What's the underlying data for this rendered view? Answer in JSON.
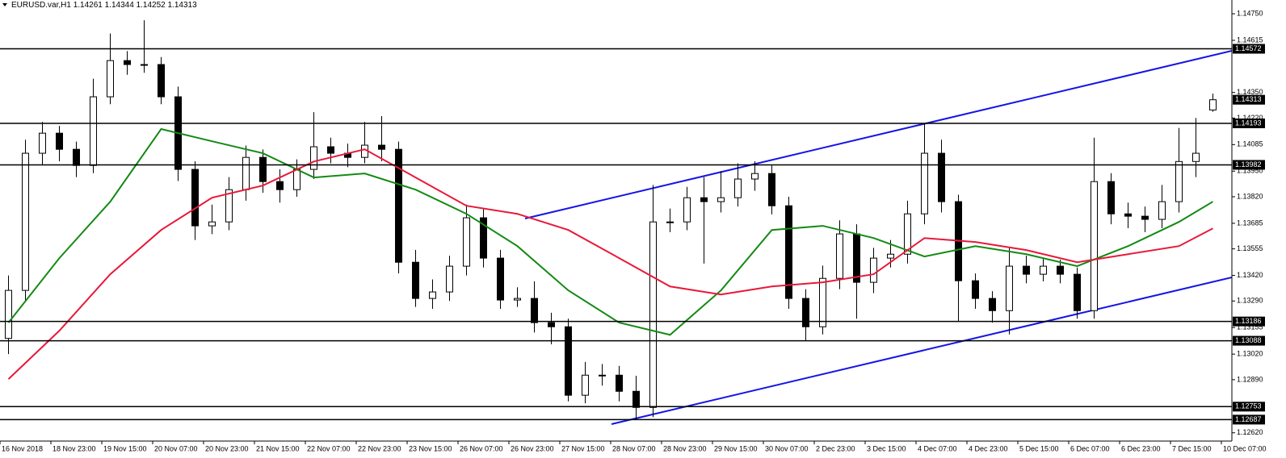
{
  "chart_data": {
    "type": "candlestick",
    "title": "EURUSD.var,H1",
    "ylim": [
      1.12578,
      1.1482
    ],
    "yticks": [
      {
        "value": 1.1475,
        "label": "1.14750"
      },
      1.14615,
      {
        "value": 1.1435,
        "label": "1.14350"
      },
      {
        "value": 1.1422,
        "label": "1.14220"
      },
      1.14085,
      {
        "value": 1.1395,
        "label": "1.13950"
      },
      {
        "value": 1.1382,
        "label": "1.13820"
      },
      1.13685,
      1.13555,
      {
        "value": 1.1342,
        "label": "1.13420"
      },
      {
        "value": 1.1329,
        "label": "1.13290"
      },
      1.13155,
      {
        "value": 1.1302,
        "label": "1.13020"
      },
      {
        "value": 1.1289,
        "label": "1.12890"
      },
      {
        "value": 1.1262,
        "label": "1.12620"
      }
    ],
    "x_labels": [
      "16 Nov 2018",
      "18 Nov 23:00",
      "19 Nov 15:00",
      "20 Nov 07:00",
      "20 Nov 23:00",
      "21 Nov 15:00",
      "22 Nov 07:00",
      "22 Nov 23:00",
      "23 Nov 15:00",
      "26 Nov 07:00",
      "26 Nov 23:00",
      "27 Nov 15:00",
      "28 Nov 07:00",
      "28 Nov 23:00",
      "29 Nov 15:00",
      "30 Nov 07:00",
      "2 Dec 23:00",
      "3 Dec 15:00",
      "4 Dec 07:00",
      "4 Dec 23:00",
      "5 Dec 15:00",
      "6 Dec 07:00",
      "6 Dec 23:00",
      "7 Dec 15:00",
      "10 Dec 07:00"
    ],
    "candles": {
      "open": [
        1.131,
        1.13344,
        1.14041,
        1.14143,
        1.14061,
        1.13979,
        1.14328,
        1.14512,
        1.14492,
        1.14492,
        1.14328,
        1.13959,
        1.13672,
        1.13692,
        1.13856,
        1.1402,
        1.13897,
        1.13856,
        1.13959,
        1.14074,
        1.14041,
        1.1402,
        1.14082,
        1.14061,
        1.13487,
        1.13303,
        1.13336,
        1.13467,
        1.13713,
        1.13508,
        1.13295,
        1.13303,
        1.1318,
        1.13159,
        1.12811,
        1.12913,
        1.12913,
        1.12831,
        1.12749,
        1.13692,
        1.13692,
        1.13815,
        1.13795,
        1.13815,
        1.1391,
        1.13938,
        1.13774,
        1.13303,
        1.13159,
        1.13405,
        1.13631,
        1.13385,
        1.13508,
        1.13528,
        1.13733,
        1.14041,
        1.13795,
        1.13393,
        1.13303,
        1.13241,
        1.13467,
        1.13426,
        1.13467,
        1.13426,
        1.13241,
        1.13897,
        1.13733,
        1.13721,
        1.13705,
        1.13795,
        1.13999,
        1.14261
      ],
      "high": [
        1.1342,
        1.1411,
        1.142,
        1.1418,
        1.141,
        1.1442,
        1.1465,
        1.1456,
        1.14717,
        1.1453,
        1.1438,
        1.14,
        1.1378,
        1.1392,
        1.1408,
        1.1406,
        1.1396,
        1.1401,
        1.1425,
        1.1412,
        1.1409,
        1.142,
        1.1423,
        1.141,
        1.1355,
        1.134,
        1.1352,
        1.1378,
        1.1376,
        1.1355,
        1.1336,
        1.1339,
        1.1323,
        1.132,
        1.1298,
        1.1297,
        1.1296,
        1.1291,
        1.1388,
        1.1376,
        1.1387,
        1.1392,
        1.1395,
        1.1399,
        1.14,
        1.1398,
        1.1382,
        1.1335,
        1.1347,
        1.137,
        1.1368,
        1.1356,
        1.136,
        1.138,
        1.14193,
        1.1411,
        1.1383,
        1.1343,
        1.1334,
        1.1356,
        1.1352,
        1.1351,
        1.135,
        1.1346,
        1.1412,
        1.1394,
        1.1379,
        1.1377,
        1.1388,
        1.1417,
        1.1422,
        1.14344
      ],
      "low": [
        1.1302,
        1.1329,
        1.1398,
        1.14,
        1.1392,
        1.1394,
        1.1429,
        1.1444,
        1.1445,
        1.1429,
        1.139,
        1.136,
        1.1363,
        1.1365,
        1.138,
        1.1384,
        1.1379,
        1.1382,
        1.1391,
        1.1399,
        1.1397,
        1.1399,
        1.14,
        1.1343,
        1.1326,
        1.1325,
        1.1329,
        1.1342,
        1.1346,
        1.1325,
        1.1326,
        1.1313,
        1.1307,
        1.1278,
        1.1277,
        1.1286,
        1.1278,
        1.12687,
        1.127,
        1.1364,
        1.1365,
        1.1348,
        1.1374,
        1.1377,
        1.1385,
        1.1373,
        1.1325,
        1.13088,
        1.1312,
        1.1335,
        1.132,
        1.1333,
        1.1346,
        1.1348,
        1.1368,
        1.1374,
        1.13186,
        1.1325,
        1.1318,
        1.1312,
        1.1338,
        1.1339,
        1.1338,
        1.132,
        1.132,
        1.1368,
        1.1366,
        1.1364,
        1.1366,
        1.1374,
        1.1392,
        1.14252
      ],
      "close": [
        1.13344,
        1.14041,
        1.14143,
        1.14061,
        1.13979,
        1.14328,
        1.14512,
        1.14492,
        1.14492,
        1.14328,
        1.13959,
        1.13672,
        1.13692,
        1.13856,
        1.1402,
        1.13897,
        1.13856,
        1.13959,
        1.14074,
        1.14041,
        1.1402,
        1.14082,
        1.14061,
        1.13487,
        1.13303,
        1.13336,
        1.13467,
        1.13713,
        1.13508,
        1.13295,
        1.13303,
        1.1318,
        1.13159,
        1.12811,
        1.12913,
        1.12913,
        1.12831,
        1.12749,
        1.13692,
        1.13692,
        1.13815,
        1.13795,
        1.13815,
        1.1391,
        1.13938,
        1.13774,
        1.13303,
        1.13159,
        1.13405,
        1.13631,
        1.13385,
        1.13508,
        1.13528,
        1.13733,
        1.14041,
        1.13795,
        1.13393,
        1.13303,
        1.13241,
        1.13467,
        1.13426,
        1.13467,
        1.13426,
        1.13241,
        1.13897,
        1.13733,
        1.13721,
        1.13705,
        1.13795,
        1.13999,
        1.14041,
        1.14313
      ]
    },
    "moving_averages": [
      {
        "color": "#138a13",
        "x": [
          0,
          3,
          6,
          9,
          12,
          15,
          18,
          21,
          24,
          27,
          30,
          33,
          36,
          39,
          42,
          45,
          48,
          51,
          54,
          57,
          60,
          63,
          66,
          69,
          71
        ],
        "values": [
          1.1318,
          1.13508,
          1.13795,
          1.14164,
          1.14102,
          1.14041,
          1.13918,
          1.13938,
          1.13856,
          1.13733,
          1.13569,
          1.13344,
          1.1318,
          1.13118,
          1.13344,
          1.13651,
          1.13672,
          1.1361,
          1.13516,
          1.13569,
          1.13528,
          1.13467,
          1.13569,
          1.13692,
          1.13795
        ]
      },
      {
        "color": "#e8183a",
        "x": [
          0,
          3,
          6,
          9,
          12,
          15,
          18,
          21,
          24,
          27,
          30,
          33,
          36,
          39,
          42,
          45,
          48,
          51,
          54,
          57,
          60,
          63,
          66,
          69,
          71
        ],
        "values": [
          1.12893,
          1.13139,
          1.13426,
          1.13651,
          1.13815,
          1.13877,
          1.13999,
          1.14061,
          1.13918,
          1.13774,
          1.13733,
          1.13651,
          1.13508,
          1.13364,
          1.13323,
          1.13364,
          1.13385,
          1.13426,
          1.1361,
          1.1359,
          1.13549,
          1.13487,
          1.13528,
          1.13569,
          1.13659
        ]
      }
    ],
    "levels": [
      1.14572,
      1.14193,
      1.13982,
      1.13186,
      1.13088,
      1.12753,
      1.12687
    ],
    "level_color": "#000000",
    "bull_color": "#ffffff",
    "bear_color": "#000000"
  }
}
